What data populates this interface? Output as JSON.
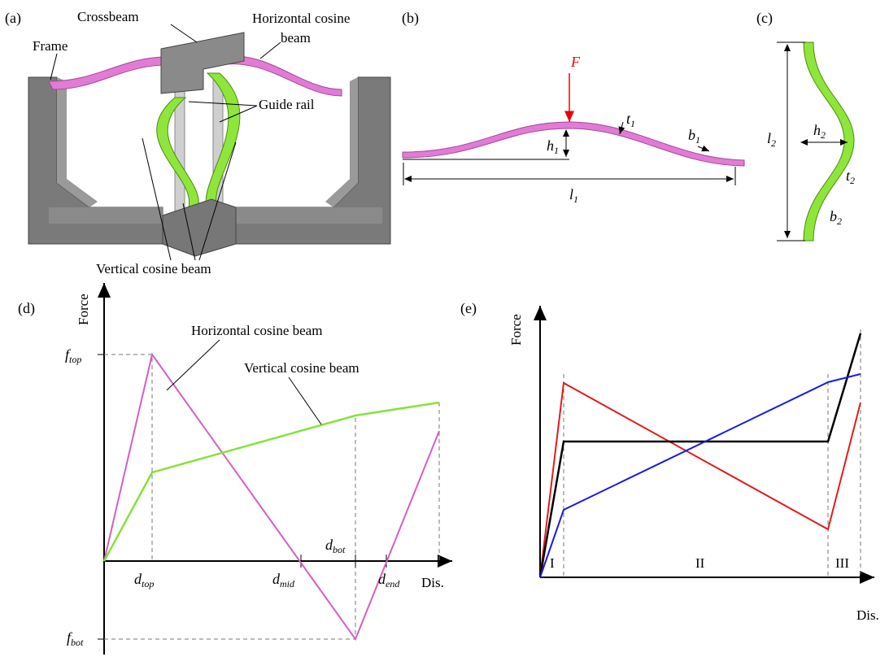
{
  "panels": {
    "a": {
      "label": "(a)",
      "crossbeam": "Crossbeam",
      "frame": "Frame",
      "horizontal_beam": [
        "Horizontal cosine",
        "beam"
      ],
      "guide_rail": "Guide rail",
      "vertical_beam": "Vertical cosine beam"
    },
    "b": {
      "label": "(b)",
      "force": "F",
      "h": {
        "base": "h",
        "sub": "1"
      },
      "t": {
        "base": "t",
        "sub": "1"
      },
      "b": {
        "base": "b",
        "sub": "1"
      },
      "l": {
        "base": "l",
        "sub": "1"
      }
    },
    "c": {
      "label": "(c)",
      "l": {
        "base": "l",
        "sub": "2"
      },
      "h": {
        "base": "h",
        "sub": "2"
      },
      "t": {
        "base": "t",
        "sub": "2"
      },
      "b": {
        "base": "b",
        "sub": "2"
      }
    },
    "d": {
      "label": "(d)",
      "y_axis": "Force",
      "x_axis": "Dis.",
      "horizontal_beam": "Horizontal cosine beam",
      "vertical_beam": "Vertical cosine beam",
      "f_top": {
        "base": "f",
        "sub": "top"
      },
      "f_bot": {
        "base": "f",
        "sub": "bot"
      },
      "d_top": {
        "base": "d",
        "sub": "top"
      },
      "d_mid": {
        "base": "d",
        "sub": "mid"
      },
      "d_bot": {
        "base": "d",
        "sub": "bot"
      },
      "d_end": {
        "base": "d",
        "sub": "end"
      }
    },
    "e": {
      "label": "(e)",
      "y_axis": "Force",
      "x_axis": "Dis.",
      "stages": [
        "I",
        "II",
        "III"
      ]
    }
  }
}
